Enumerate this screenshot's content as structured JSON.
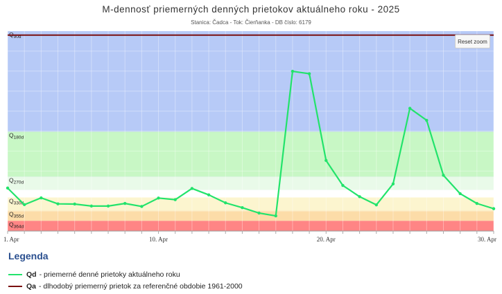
{
  "chart_data": {
    "type": "line",
    "title": "M-dennosť priemerných denných prietokov aktuálneho roku - 2025",
    "subtitle": "Stanica: Čadca - Tok: Čierňanka - DB číslo: 6179",
    "x_tick_labels": [
      "1. Apr",
      "10. Apr",
      "20. Apr",
      "30. Apr"
    ],
    "x_tick_days": [
      1,
      10,
      20,
      30
    ],
    "x_range": [
      1,
      30
    ],
    "y_range": [
      0,
      100
    ],
    "bands": [
      {
        "label": "Q90d",
        "from": 20.6,
        "to": 100,
        "color": "#b7caf7"
      },
      {
        "label": "Q180d",
        "from": 27.2,
        "to": 49.7,
        "color": "#c8f7c5"
      },
      {
        "label": "Q270d",
        "from": 20.6,
        "to": 27.2,
        "color": "#e9fae9"
      },
      {
        "label": "Q330d",
        "from": 10.2,
        "to": 16.8,
        "color": "#fcf5cf"
      },
      {
        "label": "Q355d",
        "from": 5.1,
        "to": 10.2,
        "color": "#fcdca8"
      },
      {
        "label": "Q364d",
        "from": 0,
        "to": 5.1,
        "color": "#ff8585"
      }
    ],
    "series": [
      {
        "name": "Qd",
        "color": "#22e36b",
        "x": [
          1,
          2,
          3,
          4,
          5,
          6,
          7,
          8,
          9,
          10,
          11,
          12,
          13,
          14,
          15,
          16,
          17,
          18,
          19,
          20,
          21,
          22,
          23,
          24,
          25,
          26,
          27,
          28,
          29,
          30
        ],
        "y": [
          21.5,
          13.2,
          16.6,
          13.6,
          13.5,
          12.5,
          12.5,
          13.8,
          12.3,
          16.5,
          15.7,
          21.3,
          18.1,
          14.1,
          11.7,
          9.0,
          7.6,
          79.9,
          78.7,
          35.3,
          22.8,
          17.2,
          13.1,
          23.6,
          61.4,
          55.4,
          27.9,
          18.7,
          13.8,
          11.2
        ]
      },
      {
        "name": "Qa",
        "color": "#7a0f0f",
        "x": [
          1,
          30
        ],
        "y": [
          98,
          98
        ]
      }
    ]
  },
  "legend": {
    "title": "Legenda",
    "items": [
      {
        "key": "Qd",
        "text": "- priemerné denné prietoky aktuálneho roku",
        "color": "#22e36b"
      },
      {
        "key": "Qa",
        "text": "- dlhodobý priemerný prietok za referenčné obdobie 1961-2000",
        "color": "#7a0f0f"
      }
    ]
  },
  "reset_zoom_label": "Reset zoom"
}
